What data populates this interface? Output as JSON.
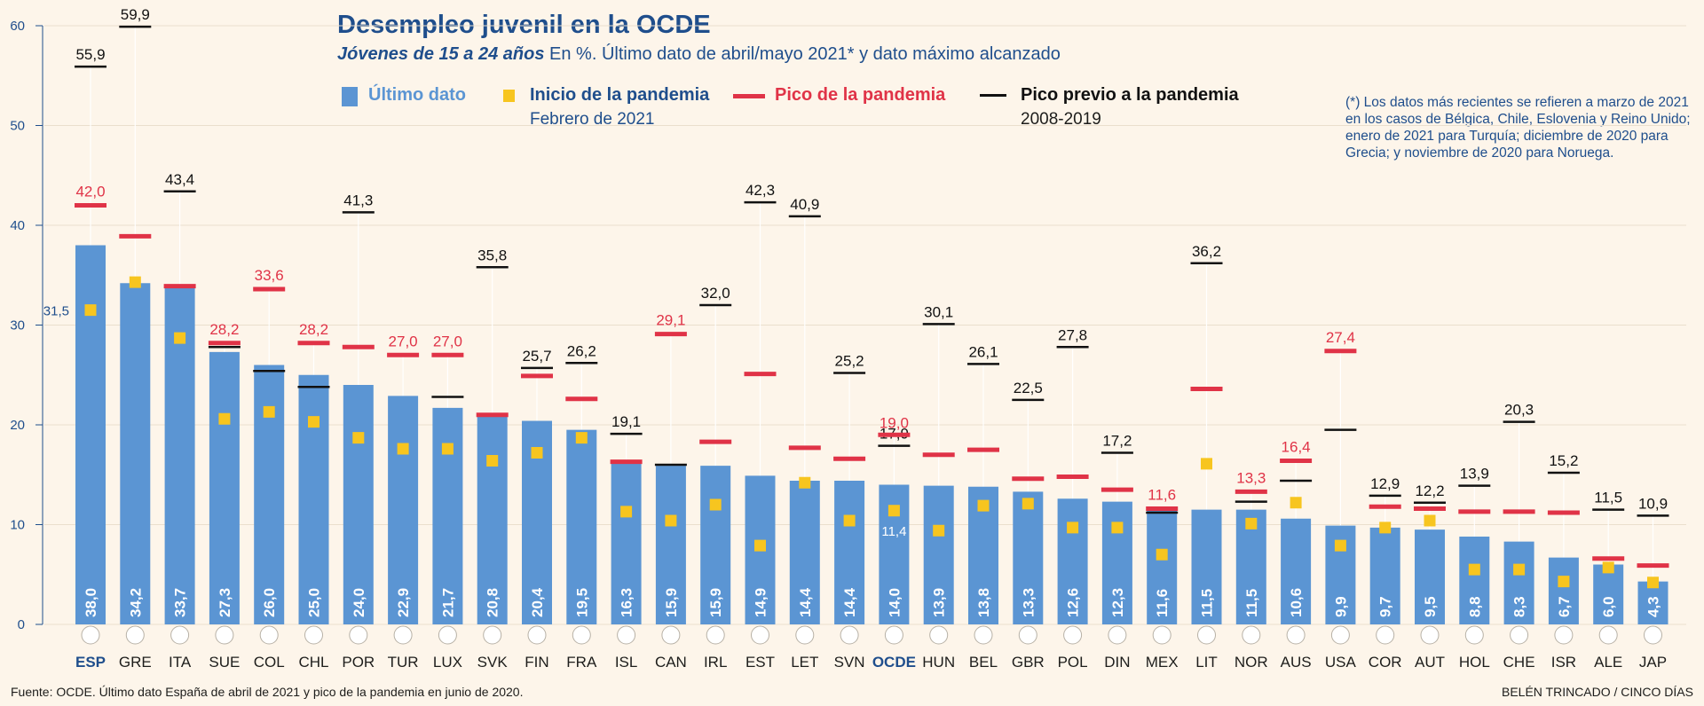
{
  "header": {
    "title": "Desempleo juvenil en la OCDE",
    "subtitle_bold": "Jóvenes de 15 a 24 años",
    "subtitle_rest": " En %. Último dato de abril/mayo 2021* y dato máximo alcanzado"
  },
  "legend": {
    "latest": "Último dato",
    "start": "Inicio de la pandemia",
    "start_sub": "Febrero de 2021",
    "peak": "Pico de la pandemia",
    "prev": "Pico previo a la pandemia",
    "prev_sub": "2008-2019"
  },
  "note": "(*) Los datos más recientes se refieren a marzo de 2021 en los casos de Bélgica, Chile, Eslovenia y Reino Unido; enero de 2021 para Turquía; diciembre de 2020 para Grecia; y noviembre de 2020 para Noruega.",
  "footer": {
    "source": "Fuente: OCDE. Último dato España de abril de 2021 y pico de la pandemia en junio de 2020.",
    "credit": "BELÉN TRINCADO / CINCO DÍAS"
  },
  "colors": {
    "bar": "#5b95d3",
    "start": "#f7c51f",
    "peak": "#e03347",
    "prev": "#111111",
    "axis": "#1f4e8c",
    "bar_label": "#ffffff"
  },
  "chart_data": {
    "type": "bar",
    "ylim": [
      0,
      60
    ],
    "yticks": [
      0,
      10,
      20,
      30,
      40,
      50,
      60
    ],
    "categories": [
      "ESP",
      "GRE",
      "ITA",
      "SUE",
      "COL",
      "CHL",
      "POR",
      "TUR",
      "LUX",
      "SVK",
      "FIN",
      "FRA",
      "ISL",
      "CAN",
      "IRL",
      "EST",
      "LET",
      "SVN",
      "OCDE",
      "HUN",
      "BEL",
      "GBR",
      "POL",
      "DIN",
      "MEX",
      "LIT",
      "NOR",
      "AUS",
      "USA",
      "COR",
      "AUT",
      "HOL",
      "CHE",
      "ISR",
      "ALE",
      "JAP"
    ],
    "highlight": [
      "ESP",
      "OCDE"
    ],
    "series": [
      {
        "name": "Último dato",
        "values": [
          38.0,
          34.2,
          33.7,
          27.3,
          26.0,
          25.0,
          24.0,
          22.9,
          21.7,
          20.8,
          20.4,
          19.5,
          16.3,
          15.9,
          15.9,
          14.9,
          14.4,
          14.4,
          14.0,
          13.9,
          13.8,
          13.3,
          12.6,
          12.3,
          11.6,
          11.5,
          11.5,
          10.6,
          9.9,
          9.7,
          9.5,
          8.8,
          8.3,
          6.7,
          6.0,
          4.3
        ],
        "labels": [
          "38,0",
          "34,2",
          "33,7",
          "27,3",
          "26,0",
          "25,0",
          "24,0",
          "22,9",
          "21,7",
          "20,8",
          "20,4",
          "19,5",
          "16,3",
          "15,9",
          "15,9",
          "14,9",
          "14,4",
          "14,4",
          "14,0",
          "13,9",
          "13,8",
          "13,3",
          "12,6",
          "12,3",
          "11,6",
          "11,5",
          "11,5",
          "10,6",
          "9,9",
          "9,7",
          "9,5",
          "8,8",
          "8,3",
          "6,7",
          "6,0",
          "4,3"
        ]
      },
      {
        "name": "Inicio de la pandemia",
        "values": [
          31.5,
          34.3,
          28.7,
          20.6,
          21.3,
          20.3,
          18.7,
          17.6,
          17.6,
          16.4,
          17.2,
          18.7,
          11.3,
          10.4,
          12.0,
          7.9,
          14.2,
          10.4,
          11.4,
          9.4,
          11.9,
          12.1,
          9.7,
          9.7,
          7.0,
          16.1,
          10.1,
          12.2,
          7.9,
          9.7,
          10.4,
          5.5,
          5.5,
          4.3,
          5.7,
          4.2
        ],
        "labels": {
          "0": "31,5",
          "18": "11,4"
        }
      },
      {
        "name": "Pico de la pandemia",
        "values": [
          42.0,
          38.9,
          33.9,
          28.2,
          33.6,
          28.2,
          27.8,
          27.0,
          27.0,
          21.0,
          24.9,
          22.6,
          16.3,
          29.1,
          18.3,
          25.1,
          17.7,
          16.6,
          19.0,
          17.0,
          17.5,
          14.6,
          14.8,
          13.5,
          11.6,
          23.6,
          13.3,
          16.4,
          27.4,
          11.8,
          11.6,
          11.3,
          11.3,
          11.2,
          6.6,
          5.9
        ],
        "labels": {
          "0": "42,0",
          "3": "28,2",
          "4": "33,6",
          "5": "28,2",
          "7": "27,0",
          "8": "27,0",
          "13": "29,1",
          "18": "19,0",
          "24": "11,6",
          "26": "13,3",
          "27": "16,4",
          "28": "27,4"
        }
      },
      {
        "name": "Pico previo a la pandemia",
        "values": [
          55.9,
          59.9,
          43.4,
          27.8,
          25.4,
          23.8,
          41.3,
          null,
          22.8,
          35.8,
          25.7,
          26.2,
          19.1,
          16.0,
          32.0,
          42.3,
          40.9,
          25.2,
          17.9,
          30.1,
          26.1,
          22.5,
          27.8,
          17.2,
          11.2,
          36.2,
          12.3,
          14.4,
          19.5,
          12.9,
          12.2,
          13.9,
          20.3,
          15.2,
          11.5,
          10.9
        ],
        "labels": {
          "0": "55,9",
          "1": "59,9",
          "2": "43,4",
          "6": "41,3",
          "9": "35,8",
          "10": "25,7",
          "11": "26,2",
          "12": "19,1",
          "14": "32,0",
          "15": "42,3",
          "16": "40,9",
          "17": "25,2",
          "18": "17,9",
          "19": "30,1",
          "20": "26,1",
          "21": "22,5",
          "22": "27,8",
          "23": "17,2",
          "25": "36,2",
          "29": "12,9",
          "30": "12,2",
          "31": "13,9",
          "32": "20,3",
          "33": "15,2",
          "34": "11,5",
          "35": "10,9"
        }
      }
    ]
  }
}
